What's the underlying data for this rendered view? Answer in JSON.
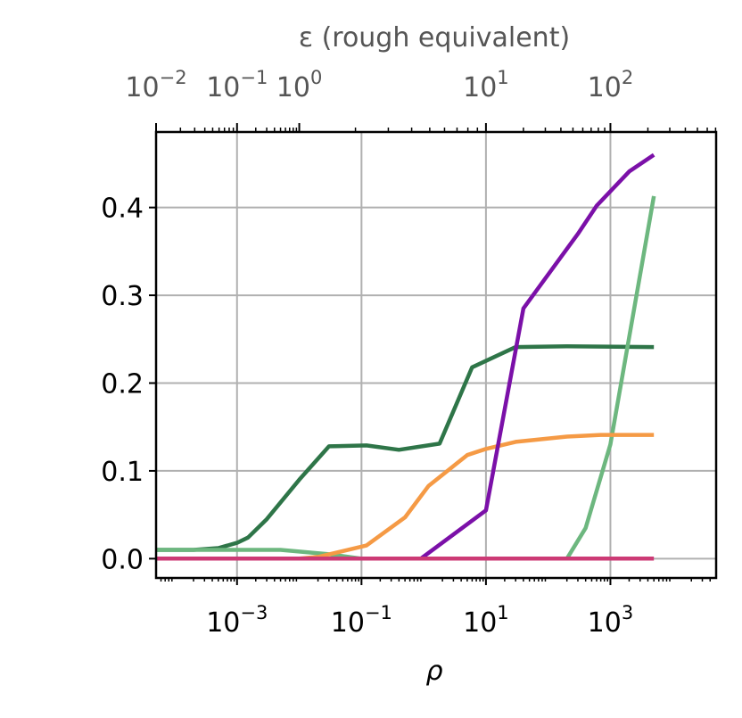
{
  "chart_data": {
    "type": "line",
    "xlabel": "ρ",
    "ylabel": "",
    "x_scale": "log",
    "xlim": [
      5e-05,
      50000
    ],
    "ylim": [
      -0.022,
      0.486
    ],
    "grid": true,
    "x_ticks": [
      {
        "value": 0.001,
        "base": "10",
        "exp": "−3"
      },
      {
        "value": 0.1,
        "base": "10",
        "exp": "−1"
      },
      {
        "value": 10,
        "base": "10",
        "exp": "1"
      },
      {
        "value": 1000,
        "base": "10",
        "exp": "3"
      }
    ],
    "y_ticks": [
      {
        "value": 0.0,
        "label": "0.0"
      },
      {
        "value": 0.1,
        "label": "0.1"
      },
      {
        "value": 0.2,
        "label": "0.2"
      },
      {
        "value": 0.3,
        "label": "0.3"
      },
      {
        "value": 0.4,
        "label": "0.4"
      }
    ],
    "top_axis": {
      "label": "ε (rough equivalent)",
      "scale": "log",
      "ticks": [
        {
          "value": 0.01,
          "base": "10",
          "exp": "−2"
        },
        {
          "value": 0.1,
          "base": "10",
          "exp": "−1"
        },
        {
          "value": 1,
          "base": "10",
          "exp": "0"
        },
        {
          "value": 10,
          "base": "10",
          "exp": "1"
        },
        {
          "value": 100,
          "base": "10",
          "exp": "2"
        }
      ],
      "ticks_in_rho": [
        5e-05,
        0.001,
        0.01,
        10,
        1000
      ]
    },
    "series": [
      {
        "color": "#2e7548",
        "x": [
          5e-05,
          0.0002,
          0.0005,
          0.001,
          0.0015,
          0.003,
          0.01,
          0.03,
          0.12,
          0.4,
          1.8,
          6,
          30,
          200,
          5000
        ],
        "y": [
          0.01,
          0.01,
          0.012,
          0.018,
          0.024,
          0.045,
          0.09,
          0.128,
          0.129,
          0.124,
          0.131,
          0.218,
          0.241,
          0.242,
          0.241
        ]
      },
      {
        "color": "#6db77f",
        "x": [
          5e-05,
          0.005,
          0.03,
          0.1,
          200,
          400,
          1000,
          5000
        ],
        "y": [
          0.01,
          0.01,
          0.005,
          0.0,
          0.0,
          0.035,
          0.13,
          0.413
        ]
      },
      {
        "color": "#f59a45",
        "x": [
          5e-05,
          0.01,
          0.02,
          0.12,
          0.5,
          1.2,
          5,
          10,
          30,
          200,
          700,
          5000
        ],
        "y": [
          0.0,
          0.0,
          0.002,
          0.015,
          0.047,
          0.083,
          0.118,
          0.125,
          0.133,
          0.139,
          0.141,
          0.141
        ]
      },
      {
        "color": "#7b10a8",
        "x": [
          5e-05,
          0.1,
          0.9,
          10,
          40,
          300,
          600,
          2000,
          5000
        ],
        "y": [
          0.0,
          0.0,
          0.0,
          0.055,
          0.285,
          0.37,
          0.402,
          0.441,
          0.46
        ]
      },
      {
        "color": "#cc3a75",
        "x": [
          5e-05,
          5000
        ],
        "y": [
          0.0,
          0.0
        ]
      }
    ]
  }
}
